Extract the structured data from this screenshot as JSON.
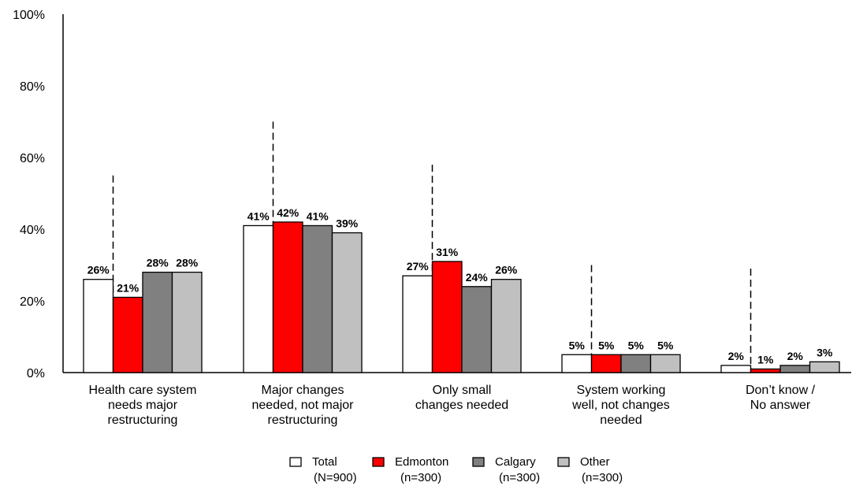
{
  "chart_data": {
    "type": "bar",
    "categories": [
      [
        "Health care system",
        "needs major",
        "restructuring"
      ],
      [
        "Major changes",
        "needed, not major",
        "restructuring"
      ],
      [
        "Only small",
        "changes needed"
      ],
      [
        "System working",
        "well, not changes",
        "needed"
      ],
      [
        "Don’t know /",
        "No answer"
      ]
    ],
    "series": [
      {
        "name": "Total",
        "sample": "(N=900)",
        "color": "#ffffff",
        "values": [
          26,
          41,
          27,
          5,
          2
        ]
      },
      {
        "name": "Edmonton",
        "sample": "(n=300)",
        "color": "#ff0000",
        "values": [
          21,
          42,
          31,
          5,
          1
        ]
      },
      {
        "name": "Calgary",
        "sample": "(n=300)",
        "color": "#808080",
        "values": [
          28,
          41,
          24,
          5,
          2
        ]
      },
      {
        "name": "Other",
        "sample": "(n=300)",
        "color": "#c0c0c0",
        "values": [
          28,
          39,
          26,
          5,
          3
        ]
      }
    ],
    "dashed_line_tops": [
      55,
      70,
      58,
      30,
      29
    ],
    "ylim": [
      0,
      100
    ],
    "yticks": [
      0,
      20,
      40,
      60,
      80,
      100
    ],
    "ytick_labels": [
      "0%",
      "20%",
      "40%",
      "60%",
      "80%",
      "100%"
    ],
    "value_suffix": "%",
    "legend_position": "bottom-center",
    "grid": false,
    "title": "",
    "xlabel": "",
    "ylabel": ""
  }
}
